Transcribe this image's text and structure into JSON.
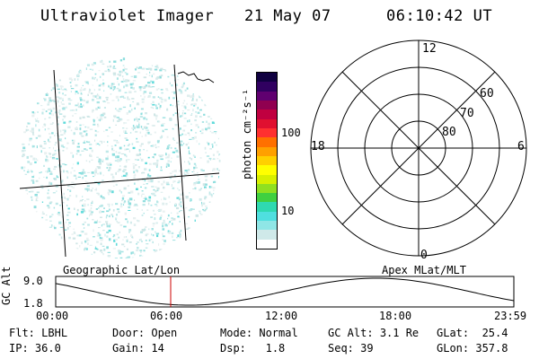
{
  "header": {
    "instrument": "Ultraviolet Imager",
    "date": "21 May 07",
    "time": "06:10:42 UT"
  },
  "colorbar": {
    "label": "photon cm⁻²s⁻¹",
    "ticks": [
      "100",
      "10"
    ],
    "colors": [
      "#ffffff",
      "#cfe9e9",
      "#8fe6e6",
      "#4fdfdf",
      "#2fd9b0",
      "#40d040",
      "#90e020",
      "#d8f000",
      "#ffff00",
      "#ffd000",
      "#ffa000",
      "#ff7000",
      "#ff3030",
      "#e01030",
      "#c00040",
      "#900050",
      "#600070",
      "#300060",
      "#100040"
    ]
  },
  "polar_plot": {
    "hour_labels": {
      "top": "12",
      "left": "18",
      "right": "6",
      "bottom": "0"
    },
    "lat_labels": [
      "60",
      "70",
      "80"
    ]
  },
  "map_labels": {
    "geographic": "Geographic Lat/Lon",
    "apex": "Apex MLat/MLT"
  },
  "altitude_plot": {
    "ylabel": "GC Alt",
    "ytick_top": "9.0",
    "ytick_bottom": "1.8",
    "xticks": [
      "00:00",
      "06:00",
      "12:00",
      "18:00",
      "23:59"
    ],
    "marker_color": "#cc0000"
  },
  "info": {
    "flt_label": "Flt:",
    "flt_value": "LBHL",
    "ip_label": "IP:",
    "ip_value": "36.0",
    "door_label": "Door:",
    "door_value": "Open",
    "gain_label": "Gain:",
    "gain_value": "14",
    "mode_label": "Mode:",
    "mode_value": "Normal",
    "dsp_label": "Dsp:",
    "dsp_value": "1.8",
    "gcalt_label": "GC Alt:",
    "gcalt_value": "3.1 Re",
    "seq_label": "Seq:",
    "seq_value": "39",
    "glat_label": "GLat:",
    "glat_value": "25.4",
    "glon_label": "GLon:",
    "glon_value": "357.8"
  }
}
